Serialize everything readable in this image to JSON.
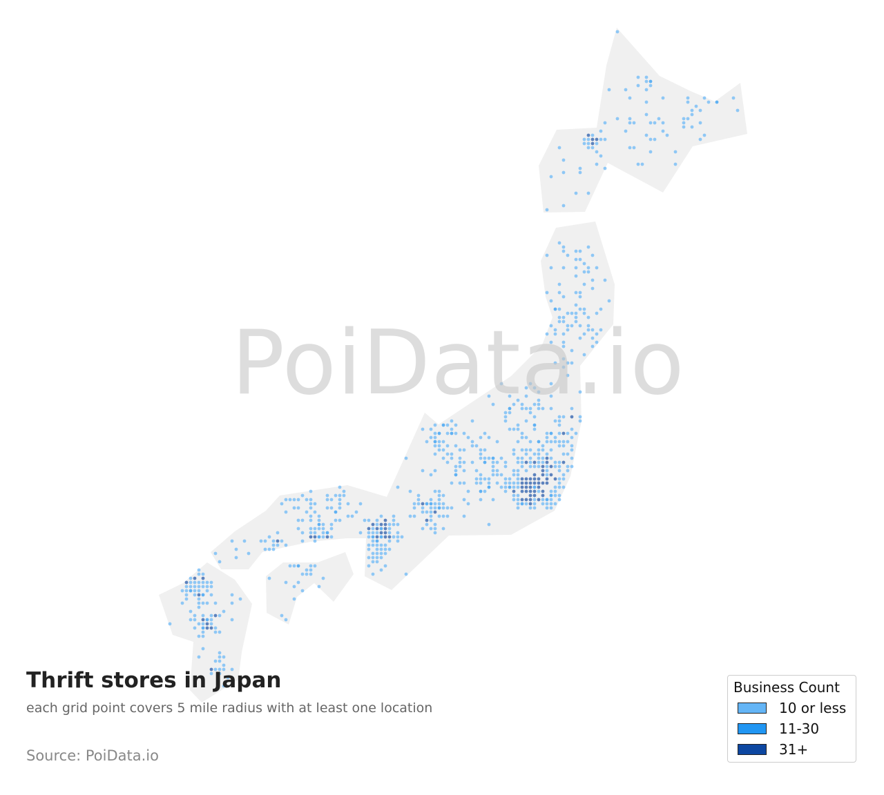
{
  "title": "Thrift stores in Japan",
  "subtitle": "each grid point covers 5 mile radius with at least one location",
  "source": "Source: PoiData.io",
  "watermark": "PoiData.io",
  "legend": {
    "title": "Business Count",
    "items": [
      {
        "label": "10 or less",
        "color": "#64b5f6"
      },
      {
        "label": "11-30",
        "color": "#2196f3"
      },
      {
        "label": "31+",
        "color": "#0d47a1"
      }
    ]
  },
  "colors": {
    "land": "#f0f0f0"
  }
}
